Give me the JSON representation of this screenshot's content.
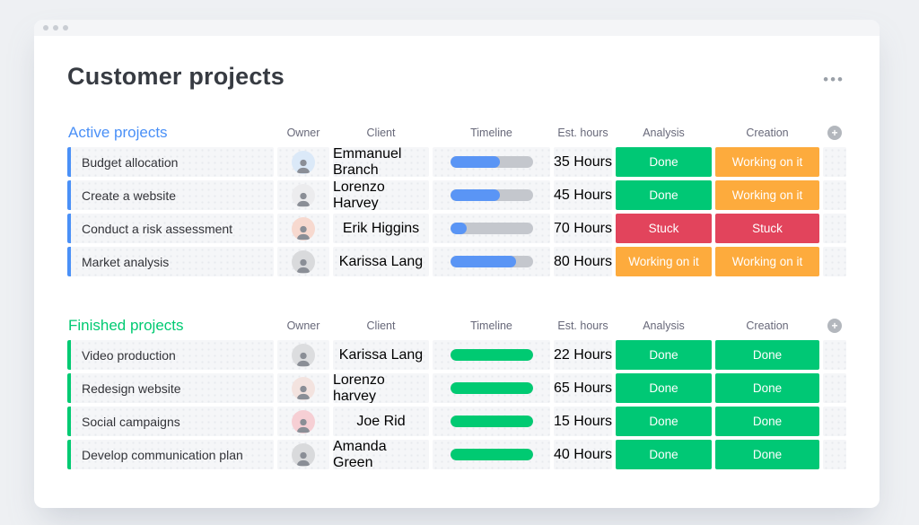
{
  "window": {
    "title": "Customer projects"
  },
  "icons": {
    "board_menu": "•••",
    "add_column": "+"
  },
  "columns": [
    "Owner",
    "Client",
    "Timeline",
    "Est. hours",
    "Analysis",
    "Creation"
  ],
  "status_colors": {
    "Done": "#00c875",
    "Working on it": "#fdab3d",
    "Stuck": "#e2445c"
  },
  "groups": [
    {
      "title": "Active projects",
      "accent": "#4a90f7",
      "timeline_fill": "#5a95f5",
      "rows": [
        {
          "name": "Budget allocation",
          "client": "Emmanuel Branch",
          "timeline_pct": 60,
          "est_hours": "35 Hours",
          "analysis": "Done",
          "creation": "Working on it",
          "avatar_color": "#dbe9f8"
        },
        {
          "name": "Create a website",
          "client": "Lorenzo Harvey",
          "timeline_pct": 60,
          "est_hours": "45 Hours",
          "analysis": "Done",
          "creation": "Working on it",
          "avatar_color": "#ececee"
        },
        {
          "name": "Conduct a risk assessment",
          "client": "Erik Higgins",
          "timeline_pct": 20,
          "est_hours": "70 Hours",
          "analysis": "Stuck",
          "creation": "Stuck",
          "avatar_color": "#f7d9cf"
        },
        {
          "name": "Market analysis",
          "client": "Karissa Lang",
          "timeline_pct": 80,
          "est_hours": "80 Hours",
          "analysis": "Working on it",
          "creation": "Working on it",
          "avatar_color": "#d9dadc"
        }
      ]
    },
    {
      "title": "Finished projects",
      "accent": "#00ca72",
      "timeline_fill": "#00ca72",
      "rows": [
        {
          "name": "Video production",
          "client": "Karissa Lang",
          "timeline_pct": 100,
          "est_hours": "22 Hours",
          "analysis": "Done",
          "creation": "Done",
          "avatar_color": "#dcdddf"
        },
        {
          "name": "Redesign website",
          "client": "Lorenzo harvey",
          "timeline_pct": 100,
          "est_hours": "65 Hours",
          "analysis": "Done",
          "creation": "Done",
          "avatar_color": "#f3e3df"
        },
        {
          "name": "Social campaigns",
          "client": "Joe Rid",
          "timeline_pct": 100,
          "est_hours": "15 Hours",
          "analysis": "Done",
          "creation": "Done",
          "avatar_color": "#f6cfd4"
        },
        {
          "name": "Develop communication plan",
          "client": "Amanda Green",
          "timeline_pct": 100,
          "est_hours": "40 Hours",
          "analysis": "Done",
          "creation": "Done",
          "avatar_color": "#d9dadc"
        }
      ]
    }
  ]
}
